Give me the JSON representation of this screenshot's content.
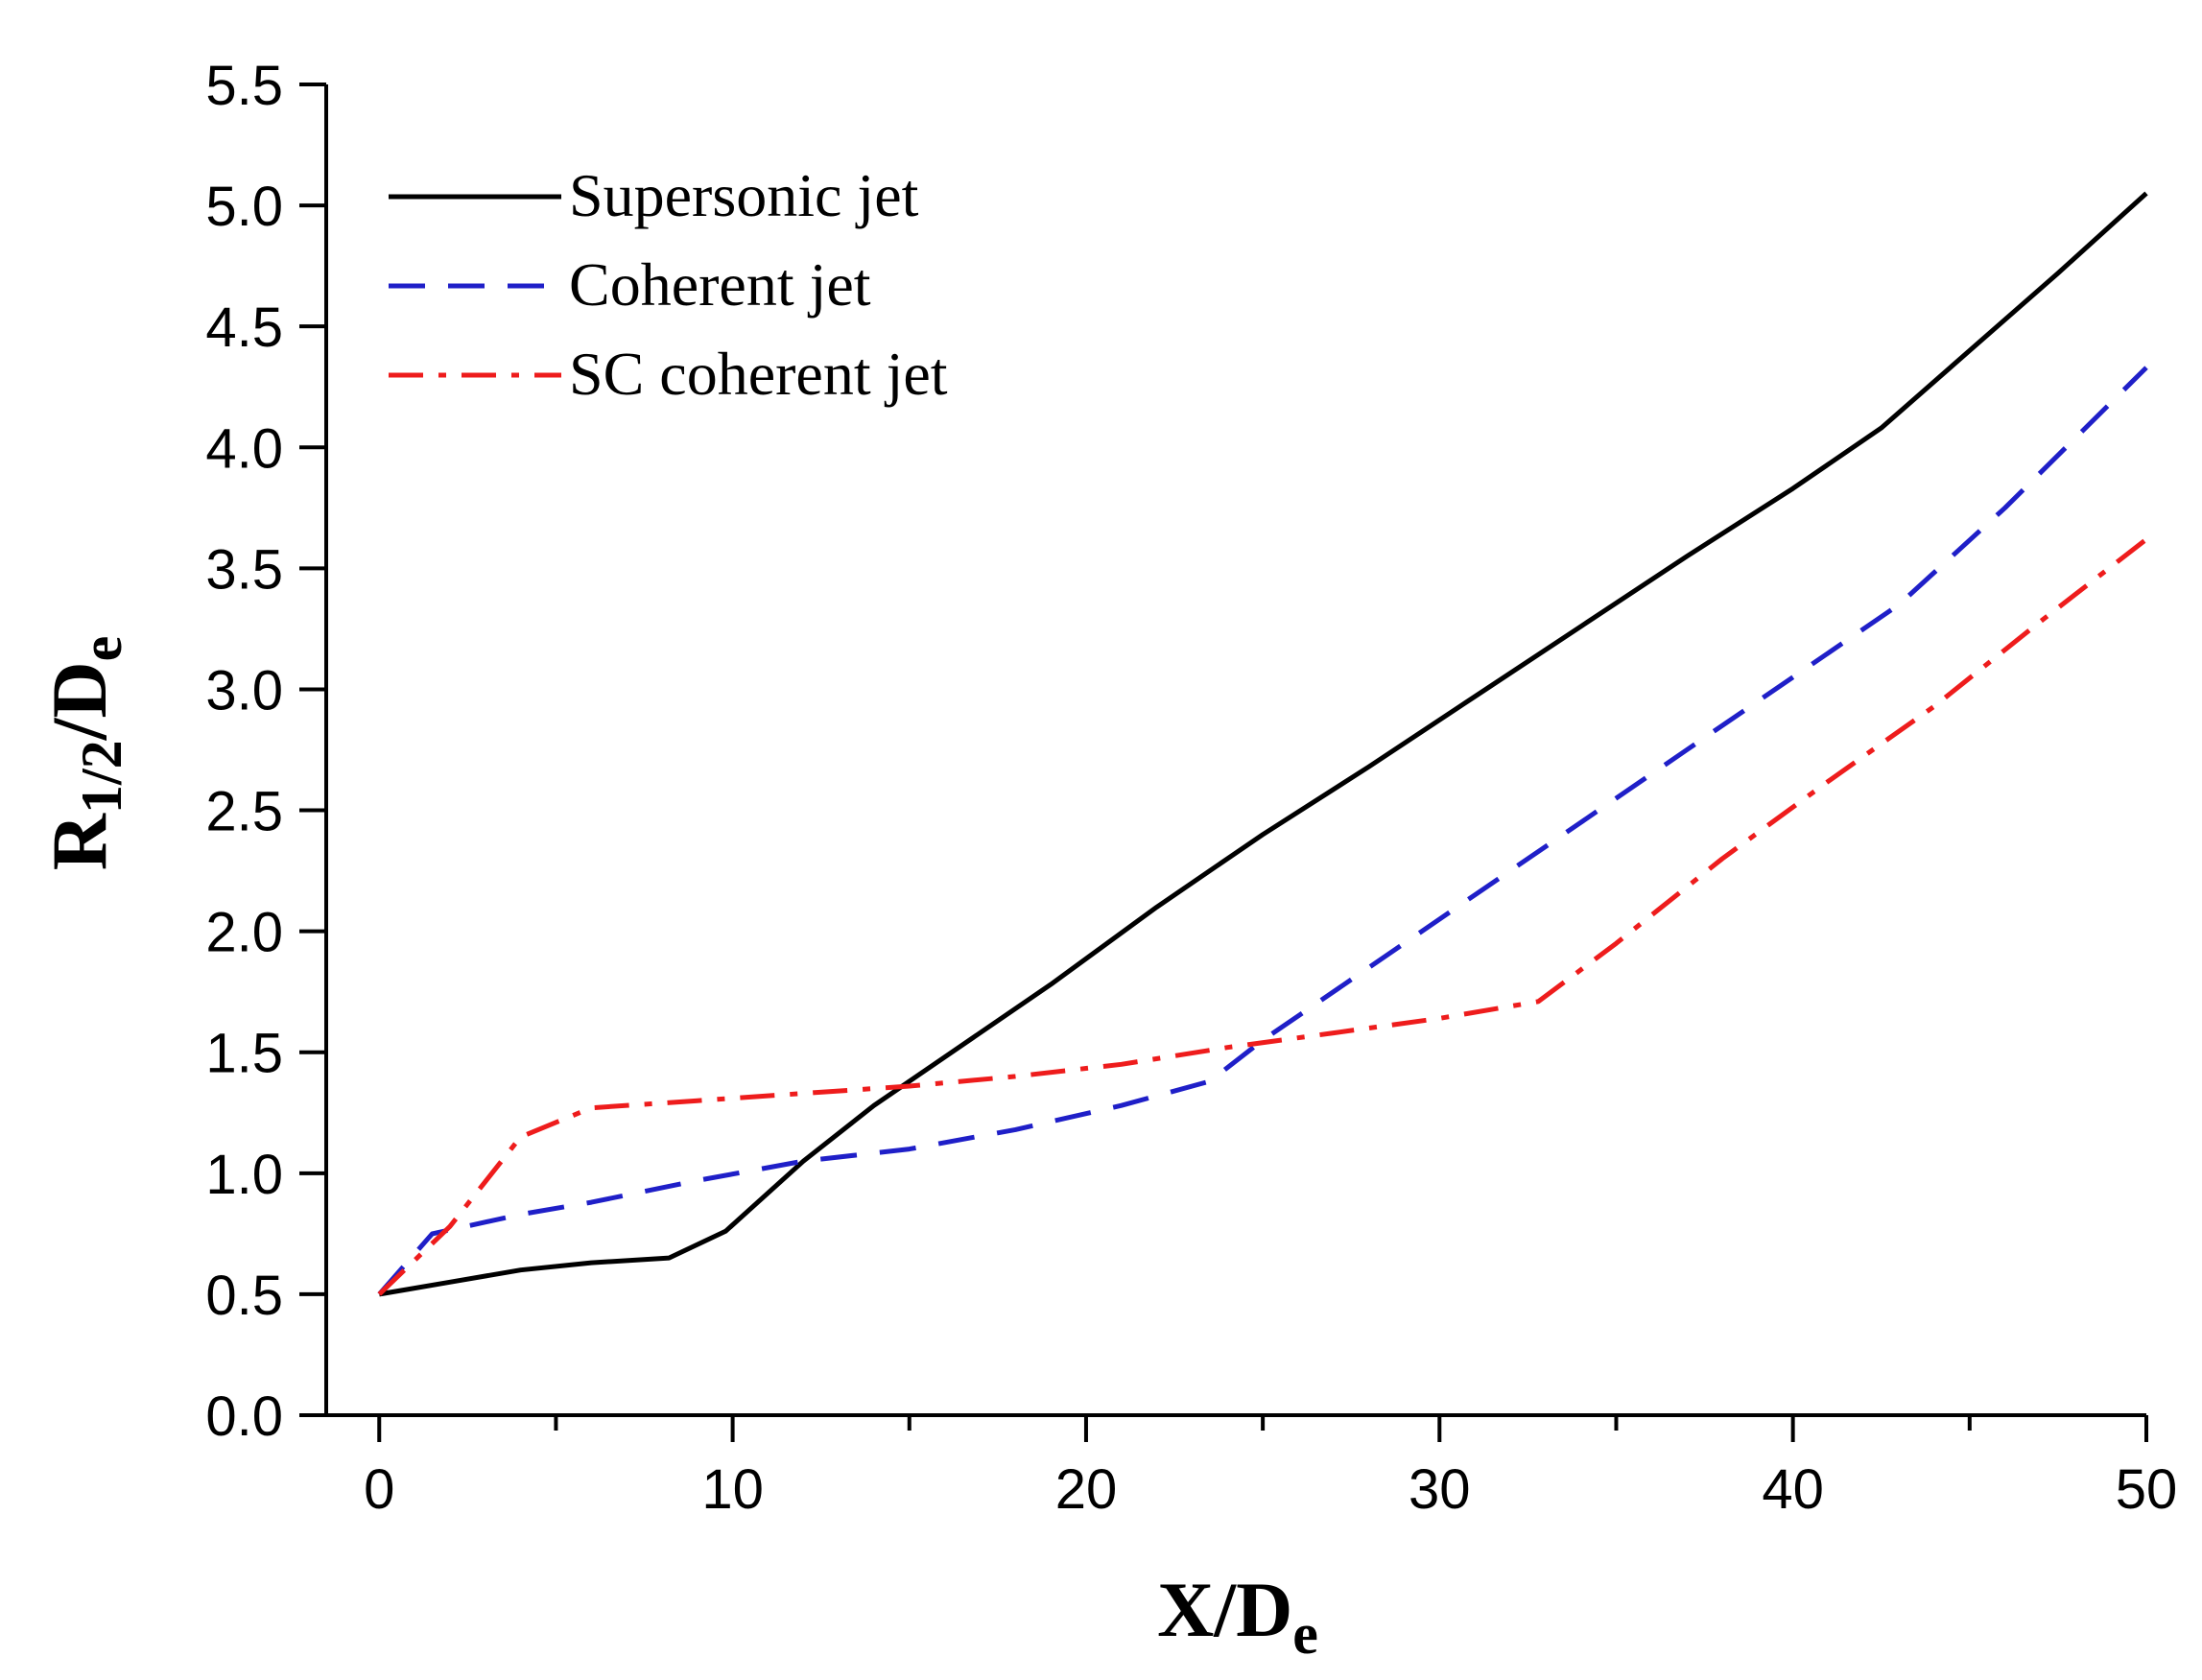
{
  "chart_data": {
    "type": "line",
    "title": "",
    "xlabel": {
      "main": "X/D",
      "sub": "e"
    },
    "ylabel": {
      "main": "R",
      "sub1": "1/2",
      "mid": "/D",
      "sub2": "e"
    },
    "xlim": [
      -1.5,
      50
    ],
    "ylim": [
      0,
      5.5
    ],
    "x_ticks": [
      0,
      10,
      20,
      30,
      40,
      50
    ],
    "x_tick_labels": [
      "0",
      "10",
      "20",
      "30",
      "40",
      "50"
    ],
    "x_minor_ticks": [
      5,
      15,
      25,
      35,
      45
    ],
    "y_ticks": [
      0,
      0.5,
      1,
      1.5,
      2,
      2.5,
      3,
      3.5,
      4,
      4.5,
      5,
      5.5
    ],
    "y_tick_labels": [
      "0.0",
      "0.5",
      "1.0",
      "1.5",
      "2.0",
      "2.5",
      "3.0",
      "3.5",
      "4.0",
      "4.5",
      "5.0",
      "5.5"
    ],
    "grid": false,
    "legend_position": "top-left",
    "series": [
      {
        "name": "Supersonic jet",
        "color": "#000000",
        "style": "solid",
        "x": [
          0,
          0.8,
          2,
          4,
          6,
          8.2,
          9.8,
          12,
          14,
          16.2,
          19,
          22,
          25,
          28,
          31,
          34,
          37,
          40,
          42.5,
          45,
          47.5,
          50
        ],
        "y": [
          0.5,
          0.52,
          0.55,
          0.6,
          0.63,
          0.65,
          0.76,
          1.05,
          1.28,
          1.5,
          1.78,
          2.1,
          2.4,
          2.68,
          2.97,
          3.26,
          3.55,
          3.83,
          4.08,
          4.4,
          4.72,
          5.05
        ]
      },
      {
        "name": "Coherent jet",
        "color": "#1f1fc8",
        "style": "dashed",
        "x": [
          0,
          1.5,
          4,
          6,
          9,
          12,
          15,
          18,
          21,
          23.5,
          25,
          28,
          31,
          34,
          37,
          40,
          43,
          46,
          50
        ],
        "y": [
          0.5,
          0.75,
          0.83,
          0.88,
          0.97,
          1.05,
          1.1,
          1.18,
          1.28,
          1.38,
          1.55,
          1.85,
          2.15,
          2.45,
          2.75,
          3.05,
          3.35,
          3.75,
          4.33
        ]
      },
      {
        "name": "SC coherent jet",
        "color": "#ee1c1c",
        "style": "dashdot",
        "x": [
          0,
          2,
          4,
          6,
          9,
          12,
          15,
          18,
          21,
          24,
          27,
          30,
          32.8,
          35,
          38,
          41,
          44,
          47,
          50
        ],
        "y": [
          0.5,
          0.78,
          1.15,
          1.27,
          1.3,
          1.33,
          1.36,
          1.4,
          1.45,
          1.52,
          1.58,
          1.64,
          1.71,
          1.95,
          2.3,
          2.62,
          2.93,
          3.28,
          3.62
        ]
      }
    ]
  }
}
